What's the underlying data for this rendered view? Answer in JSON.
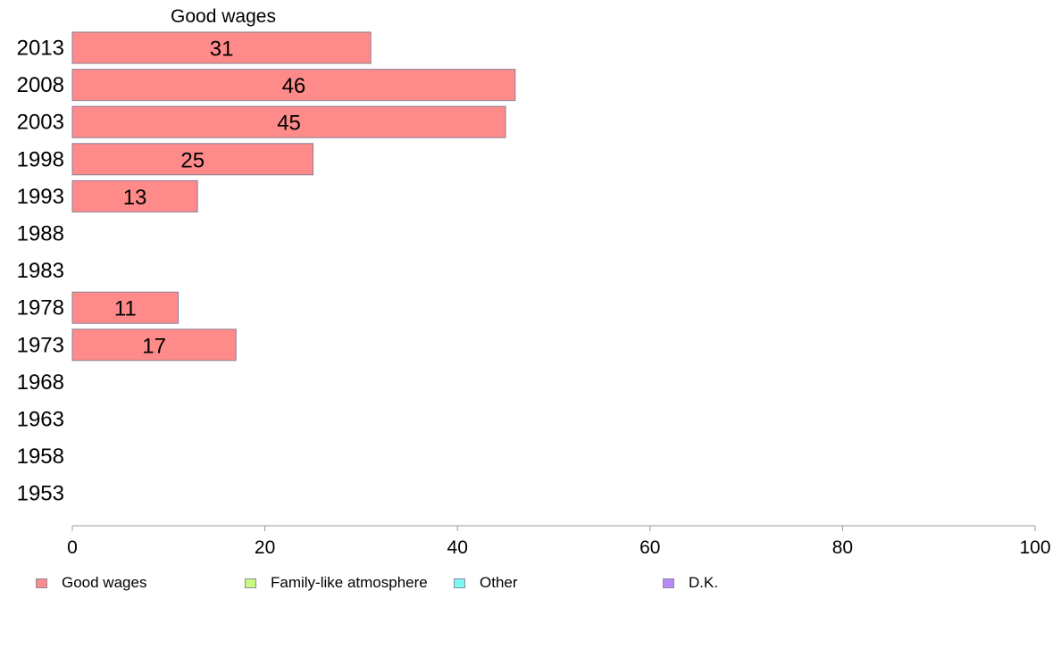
{
  "chart_data": {
    "type": "bar",
    "orientation": "horizontal",
    "title": "Good wages",
    "categories": [
      "2013",
      "2008",
      "2003",
      "1998",
      "1993",
      "1988",
      "1983",
      "1978",
      "1973",
      "1968",
      "1963",
      "1958",
      "1953"
    ],
    "series": [
      {
        "name": "Good wages",
        "color": "#ff8a8a",
        "values": [
          31,
          46,
          45,
          25,
          13,
          null,
          null,
          11,
          17,
          null,
          null,
          null,
          null
        ]
      }
    ],
    "xlim": [
      0,
      100
    ],
    "xticks": [
      0,
      20,
      40,
      60,
      80,
      100
    ],
    "grid": false,
    "legend_position": "bottom"
  },
  "legend": [
    {
      "label": "Good wages",
      "color": "#ff8a8a"
    },
    {
      "label": "Family-like atmosphere",
      "color": "#c6fa7e"
    },
    {
      "label": "Other",
      "color": "#7cf8f2"
    },
    {
      "label": "D.K.",
      "color": "#b98af5"
    }
  ]
}
